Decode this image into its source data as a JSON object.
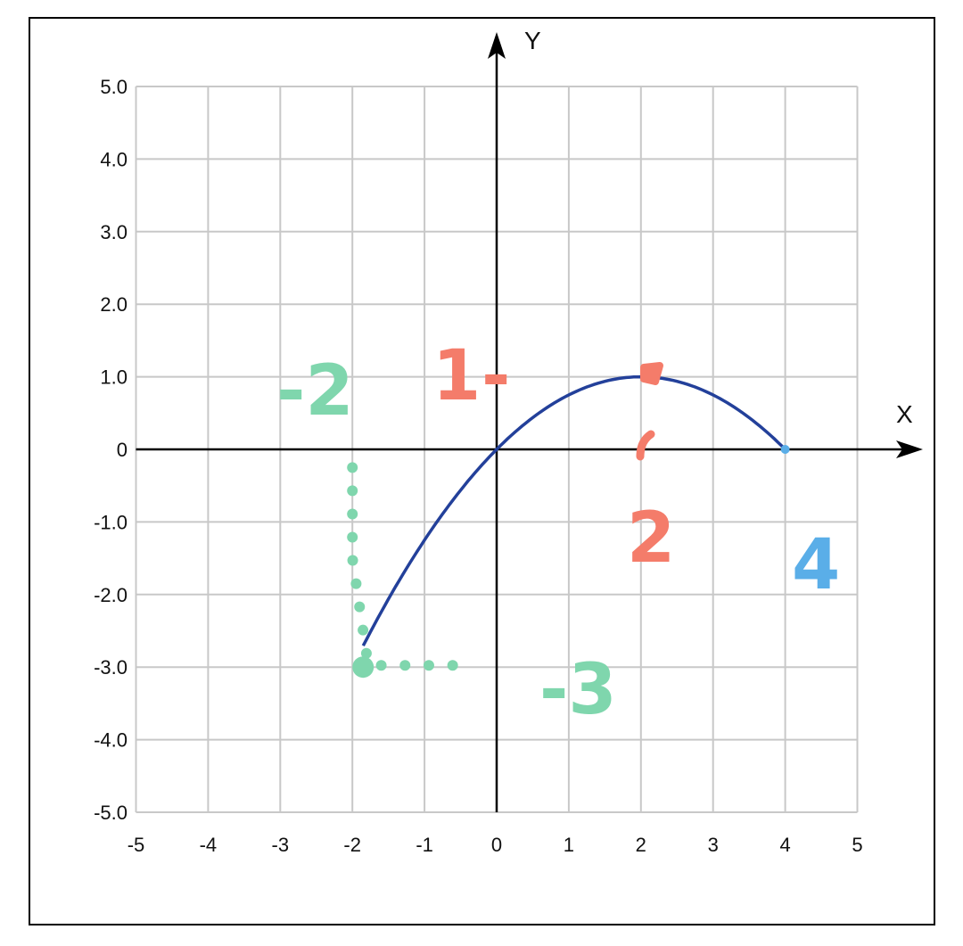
{
  "chart_data": {
    "type": "line",
    "title": "",
    "xlabel": "X",
    "ylabel": "Y",
    "xlim": [
      -5,
      5
    ],
    "ylim": [
      -5,
      5
    ],
    "grid": true,
    "x_ticks": [
      "-5",
      "-4",
      "-3",
      "-2",
      "-1",
      "0",
      "1",
      "2",
      "3",
      "4",
      "5"
    ],
    "y_ticks": [
      "5.0",
      "4.0",
      "3.0",
      "2.0",
      "1.0",
      "0",
      "-1.0",
      "-2.0",
      "-3.0",
      "-4.0",
      "-5.0"
    ],
    "series": [
      {
        "color": "#23409a",
        "x": [
          -2,
          -1.5,
          -1,
          -0.5,
          0,
          0.5,
          1,
          1.5,
          2,
          2.5,
          3,
          3.5,
          4
        ],
        "y": [
          -3,
          -2.0625,
          -1.25,
          -0.5625,
          0,
          0.4375,
          0.75,
          0.9375,
          1,
          0.9375,
          0.75,
          0.4375,
          0
        ]
      }
    ],
    "highlighted_point": {
      "x": 4,
      "y": 0,
      "color": "#5aaee8"
    },
    "annotations": [
      {
        "text": "-2",
        "color": "#7fd6ad"
      },
      {
        "text": "1",
        "color": "#f47c6a"
      },
      {
        "text": "-",
        "color": "#f47c6a"
      },
      {
        "text": "2",
        "color": "#f47c6a"
      },
      {
        "text": "4",
        "color": "#5aaee8"
      },
      {
        "text": "-3",
        "color": "#7fd6ad"
      }
    ],
    "guide_lines": {
      "color": "#7fd6ad",
      "from": {
        "x": -2,
        "y": 0
      },
      "corner": {
        "x": -2,
        "y": -3
      },
      "to": {
        "x": -0.6,
        "y": -3
      }
    }
  }
}
